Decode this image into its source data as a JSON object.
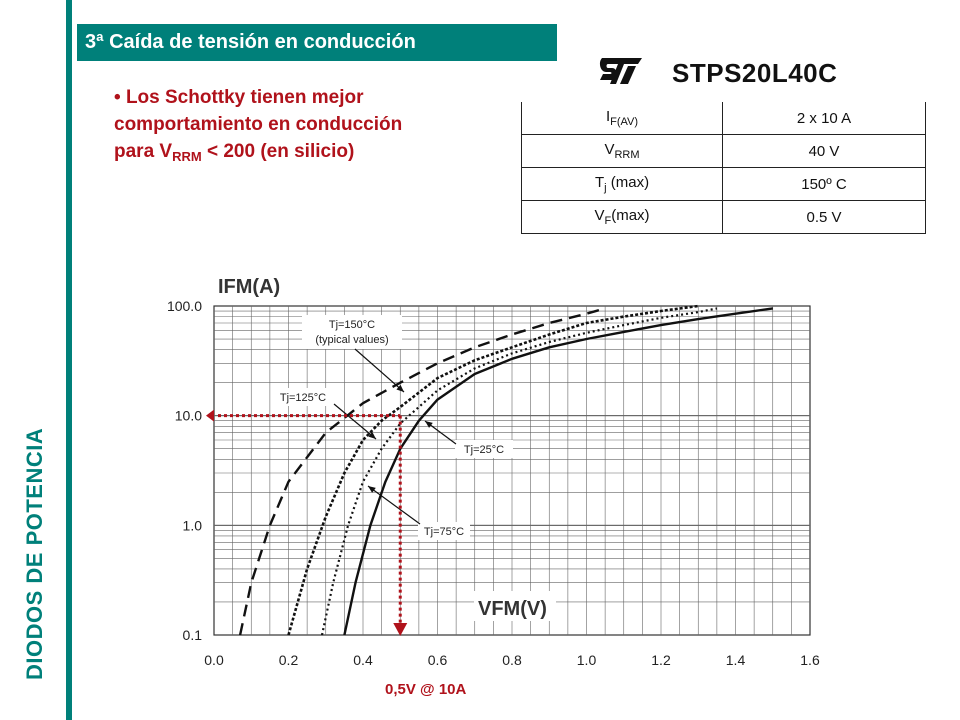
{
  "sidebar": {
    "label": "DIODOS DE POTENCIA"
  },
  "header": {
    "title": "3ª Caída de tensión en conducción"
  },
  "bullet": {
    "marker": "•",
    "line1": "Los Schottky tienen mejor",
    "line2": "comportamiento en conducción",
    "line3_pre": "para V",
    "line3_sub": "RRM",
    "line3_post": " < 200 (en silicio)"
  },
  "device": {
    "part_number": "STPS20L40C"
  },
  "spec_table": [
    {
      "param": "I",
      "sub": "F(AV)",
      "suffix": "",
      "value": "2 x 10 A"
    },
    {
      "param": "V",
      "sub": "RRM",
      "suffix": "",
      "value": "40 V"
    },
    {
      "param": "T",
      "sub": "j",
      "suffix": " (max)",
      "value": "150º C"
    },
    {
      "param": "V",
      "sub": "F",
      "suffix": "(max)",
      "value": "0.5 V"
    }
  ],
  "chart_data": {
    "type": "line",
    "title": "",
    "ylabel": "IFM(A)",
    "xlabel": "VFM(V)",
    "xlim": [
      0.0,
      1.6
    ],
    "ylim": [
      0.1,
      100.0
    ],
    "yscale": "log",
    "x_ticks": [
      "0.0",
      "0.2",
      "0.4",
      "0.6",
      "0.8",
      "1.0",
      "1.2",
      "1.4",
      "1.6"
    ],
    "y_ticks": [
      "0.1",
      "1.0",
      "10.0",
      "100.0"
    ],
    "grid": true,
    "series": [
      {
        "name": "Tj=150°C (typical values)",
        "style": "dashed",
        "points": [
          [
            0.07,
            0.1
          ],
          [
            0.1,
            0.3
          ],
          [
            0.15,
            1.0
          ],
          [
            0.2,
            2.5
          ],
          [
            0.3,
            7.0
          ],
          [
            0.4,
            13.0
          ],
          [
            0.5,
            20.0
          ],
          [
            0.6,
            30.0
          ],
          [
            0.7,
            42.0
          ],
          [
            0.8,
            55.0
          ],
          [
            0.9,
            70.0
          ],
          [
            1.0,
            85.0
          ],
          [
            1.05,
            95.0
          ]
        ]
      },
      {
        "name": "Tj=125°C",
        "style": "densely-dotted",
        "points": [
          [
            0.2,
            0.1
          ],
          [
            0.25,
            0.4
          ],
          [
            0.3,
            1.2
          ],
          [
            0.35,
            3.0
          ],
          [
            0.4,
            6.0
          ],
          [
            0.45,
            9.0
          ],
          [
            0.5,
            12.0
          ],
          [
            0.6,
            22.0
          ],
          [
            0.7,
            32.0
          ],
          [
            0.8,
            42.0
          ],
          [
            0.9,
            55.0
          ],
          [
            1.0,
            70.0
          ],
          [
            1.1,
            80.0
          ],
          [
            1.2,
            90.0
          ],
          [
            1.3,
            100.0
          ]
        ]
      },
      {
        "name": "Tj=75°C",
        "style": "dotted",
        "points": [
          [
            0.29,
            0.1
          ],
          [
            0.32,
            0.3
          ],
          [
            0.36,
            1.0
          ],
          [
            0.4,
            2.5
          ],
          [
            0.45,
            5.0
          ],
          [
            0.5,
            8.5
          ],
          [
            0.55,
            12.0
          ],
          [
            0.6,
            17.0
          ],
          [
            0.7,
            27.0
          ],
          [
            0.8,
            37.0
          ],
          [
            0.9,
            47.0
          ],
          [
            1.0,
            57.0
          ],
          [
            1.1,
            67.0
          ],
          [
            1.2,
            78.0
          ],
          [
            1.3,
            88.0
          ],
          [
            1.35,
            95.0
          ]
        ]
      },
      {
        "name": "Tj=25°C",
        "style": "solid",
        "points": [
          [
            0.35,
            0.1
          ],
          [
            0.38,
            0.3
          ],
          [
            0.42,
            1.0
          ],
          [
            0.46,
            2.5
          ],
          [
            0.5,
            5.0
          ],
          [
            0.55,
            9.0
          ],
          [
            0.6,
            14.0
          ],
          [
            0.7,
            24.0
          ],
          [
            0.8,
            33.0
          ],
          [
            0.9,
            42.0
          ],
          [
            1.0,
            50.0
          ],
          [
            1.1,
            58.0
          ],
          [
            1.2,
            67.0
          ],
          [
            1.3,
            76.0
          ],
          [
            1.4,
            85.0
          ],
          [
            1.5,
            95.0
          ]
        ]
      }
    ],
    "labels": {
      "tj150_line1": "Tj=150°C",
      "tj150_line2": "(typical values)",
      "tj125": "Tj=125°C",
      "tj75": "Tj=75°C",
      "tj25": "Tj=25°C"
    },
    "marker": {
      "x": 0.5,
      "y": 10.0
    }
  },
  "annotation": {
    "note": "0,5V @ 10A"
  },
  "colors": {
    "accent": "#00807a",
    "highlight": "#b0121b",
    "grid": "#666666"
  }
}
